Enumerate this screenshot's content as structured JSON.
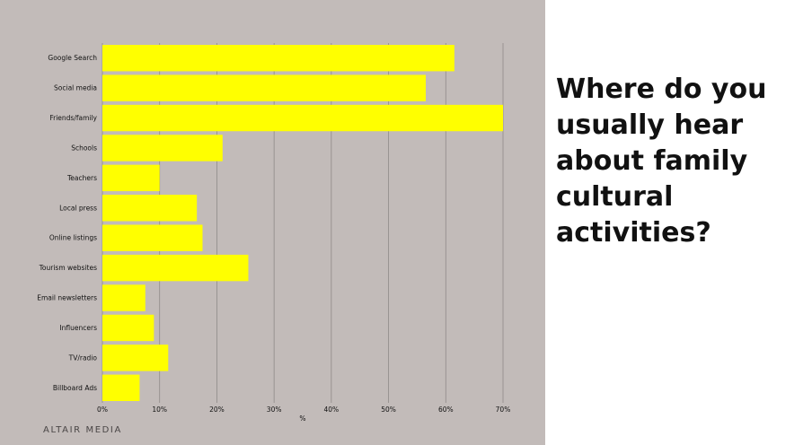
{
  "question": "Where do you usually hear about family cultural activities?",
  "brand": "ALTAIR MEDIA",
  "colors": {
    "panel": "#c2bbb9",
    "bar": "#ffff00",
    "grid": "#8f8a88",
    "text": "#111111"
  },
  "chart_data": {
    "type": "bar",
    "orientation": "horizontal",
    "categories": [
      "Google Search",
      "Social media",
      "Friends/family",
      "Schools",
      "Teachers",
      "Local press",
      "Online listings",
      "Tourism websites",
      "Email newsletters",
      "Influencers",
      "TV/radio",
      "Billboard Ads"
    ],
    "values": [
      61.5,
      56.5,
      70,
      21,
      10,
      16.5,
      17.5,
      25.5,
      7.5,
      9,
      11.5,
      6.5
    ],
    "xlabel": "%",
    "xlim": [
      0,
      70
    ],
    "xticks": [
      "0%",
      "10%",
      "20%",
      "30%",
      "40%",
      "50%",
      "60%",
      "70%"
    ],
    "grid": "vertical"
  }
}
